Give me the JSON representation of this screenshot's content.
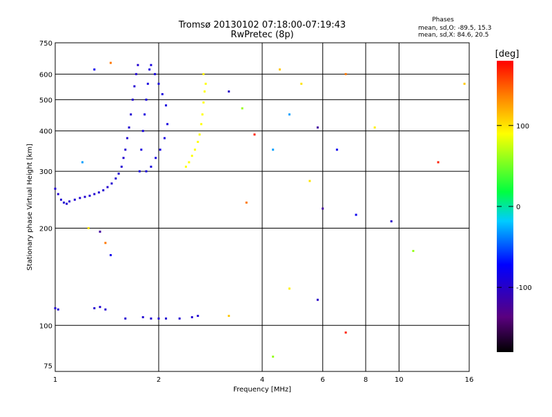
{
  "header": {
    "title_line1": "Tromsø 20130102 07:18:00-07:19:43",
    "title_line2": "RwPretec (8p)",
    "stats_heading": "Phases",
    "stats_line1": "mean, sd,O:  -89.5, 15.3",
    "stats_line2": "mean, sd,X:   84.6, 20.5"
  },
  "colorbar": {
    "label": "[deg]",
    "ticks": [
      "100",
      "0",
      "-100"
    ],
    "tick_values": [
      100,
      0,
      -100
    ],
    "range": [
      -180,
      180
    ],
    "colormap": "rainbow: black-purple-blue-cyan-green-yellow-red"
  },
  "chart_data": {
    "type": "scatter",
    "title": "Tromsø 20130102 07:18:00-07:19:43",
    "subtitle": "RwPretec (8p)",
    "xlabel": "Frequency [MHz]",
    "ylabel": "Stationary phase Virtual Height [km]",
    "x_scale": "log",
    "y_scale": "log",
    "xlim": [
      1,
      16
    ],
    "ylim": [
      72,
      750
    ],
    "x_ticks": [
      1,
      2,
      4,
      6,
      8,
      10,
      16
    ],
    "x_tick_labels": [
      "1",
      "2",
      "4",
      "6",
      "8",
      "10",
      "16"
    ],
    "y_ticks": [
      75,
      100,
      200,
      300,
      400,
      500,
      600,
      750
    ],
    "y_tick_labels": [
      "75",
      "100",
      "200",
      "300",
      "400",
      "500",
      "600",
      "750"
    ],
    "grid_x": [
      2,
      4,
      6,
      8,
      10
    ],
    "grid_y": [
      100,
      200,
      300,
      400,
      500,
      600
    ],
    "color_value": "phase [deg]",
    "series": [
      {
        "trace": "F-region O-mode (lower)",
        "phase_mean": -95,
        "points": [
          [
            1.0,
            265
          ],
          [
            1.02,
            255
          ],
          [
            1.04,
            245
          ],
          [
            1.06,
            240
          ],
          [
            1.08,
            238
          ],
          [
            1.1,
            242
          ],
          [
            1.14,
            245
          ],
          [
            1.18,
            248
          ],
          [
            1.22,
            250
          ],
          [
            1.26,
            252
          ],
          [
            1.3,
            255
          ],
          [
            1.34,
            258
          ],
          [
            1.38,
            262
          ],
          [
            1.42,
            268
          ],
          [
            1.46,
            275
          ],
          [
            1.5,
            285
          ],
          [
            1.53,
            295
          ],
          [
            1.56,
            310
          ],
          [
            1.58,
            330
          ],
          [
            1.6,
            350
          ],
          [
            1.62,
            380
          ],
          [
            1.64,
            410
          ],
          [
            1.66,
            450
          ],
          [
            1.68,
            500
          ],
          [
            1.7,
            550
          ],
          [
            1.72,
            600
          ],
          [
            1.74,
            640
          ]
        ]
      },
      {
        "trace": "F-region O-mode (cusp band)",
        "phase_mean": -88,
        "points": [
          [
            1.76,
            300
          ],
          [
            1.78,
            350
          ],
          [
            1.8,
            400
          ],
          [
            1.82,
            450
          ],
          [
            1.84,
            500
          ],
          [
            1.86,
            560
          ],
          [
            1.88,
            620
          ],
          [
            1.9,
            640
          ],
          [
            1.95,
            600
          ],
          [
            2.0,
            560
          ],
          [
            2.05,
            520
          ],
          [
            2.1,
            480
          ],
          [
            2.12,
            420
          ],
          [
            2.08,
            380
          ],
          [
            2.02,
            350
          ],
          [
            1.96,
            330
          ],
          [
            1.9,
            310
          ],
          [
            1.84,
            300
          ]
        ]
      },
      {
        "trace": "F-region X-mode",
        "phase_mean": 90,
        "points": [
          [
            2.4,
            310
          ],
          [
            2.45,
            320
          ],
          [
            2.5,
            335
          ],
          [
            2.55,
            350
          ],
          [
            2.6,
            370
          ],
          [
            2.63,
            390
          ],
          [
            2.66,
            420
          ],
          [
            2.68,
            450
          ],
          [
            2.7,
            490
          ],
          [
            2.72,
            530
          ],
          [
            2.74,
            560
          ]
        ]
      },
      {
        "trace": "E-region",
        "phase_mean": -95,
        "points": [
          [
            1.0,
            113
          ],
          [
            1.02,
            112
          ],
          [
            1.3,
            113
          ],
          [
            1.35,
            114
          ],
          [
            1.4,
            112
          ],
          [
            1.6,
            105
          ],
          [
            1.8,
            106
          ],
          [
            1.9,
            105
          ],
          [
            2.0,
            105
          ],
          [
            2.1,
            105
          ],
          [
            2.3,
            105
          ],
          [
            2.5,
            106
          ],
          [
            2.6,
            107
          ]
        ]
      },
      {
        "trace": "scattered echoes",
        "points": [
          [
            1.3,
            620
          ],
          [
            1.45,
            650
          ],
          [
            2.7,
            600
          ],
          [
            3.2,
            530
          ],
          [
            3.5,
            470
          ],
          [
            3.8,
            390
          ],
          [
            4.5,
            620
          ],
          [
            4.8,
            450
          ],
          [
            5.2,
            560
          ],
          [
            5.8,
            410
          ],
          [
            6.6,
            350
          ],
          [
            7.0,
            600
          ],
          [
            8.5,
            410
          ],
          [
            9.5,
            210
          ],
          [
            11,
            170
          ],
          [
            13,
            320
          ],
          [
            15.5,
            560
          ],
          [
            4.3,
            350
          ],
          [
            5.5,
            280
          ],
          [
            6.0,
            230
          ],
          [
            7.5,
            220
          ],
          [
            3.6,
            240
          ],
          [
            4.8,
            130
          ],
          [
            5.8,
            120
          ],
          [
            4.3,
            80
          ],
          [
            7.0,
            95
          ],
          [
            3.2,
            107
          ],
          [
            1.2,
            320
          ],
          [
            1.25,
            200
          ],
          [
            1.35,
            195
          ],
          [
            1.45,
            165
          ],
          [
            1.4,
            180
          ]
        ]
      }
    ]
  }
}
